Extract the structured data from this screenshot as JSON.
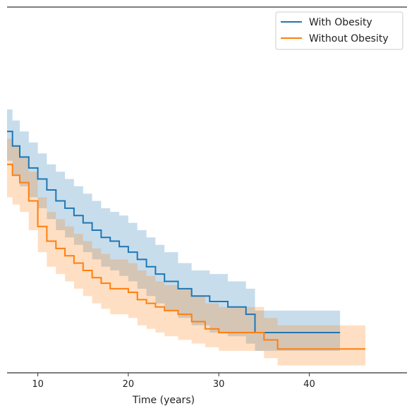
{
  "chart_data": {
    "type": "line",
    "title": "",
    "xlabel": "Time (years)",
    "ylabel": "",
    "xlim": [
      6.6,
      50.8
    ],
    "ylim": [
      0.0,
      1.0
    ],
    "xticks": [
      10,
      20,
      30,
      40
    ],
    "grid": false,
    "legend_position": "top-right",
    "series": [
      {
        "name": "With Obesity",
        "color": "#1f77b4",
        "ci_color": "#1f77b4",
        "steps": [
          [
            6.6,
            0.66
          ],
          [
            7.2,
            0.62
          ],
          [
            8.0,
            0.59
          ],
          [
            9.0,
            0.56
          ],
          [
            10.0,
            0.53
          ],
          [
            11.0,
            0.5
          ],
          [
            12.0,
            0.47
          ],
          [
            13.0,
            0.45
          ],
          [
            14.0,
            0.43
          ],
          [
            15.0,
            0.41
          ],
          [
            16.0,
            0.39
          ],
          [
            17.0,
            0.37
          ],
          [
            18.0,
            0.36
          ],
          [
            19.0,
            0.345
          ],
          [
            20.0,
            0.33
          ],
          [
            21.0,
            0.31
          ],
          [
            22.0,
            0.29
          ],
          [
            23.0,
            0.27
          ],
          [
            24.0,
            0.25
          ],
          [
            25.5,
            0.23
          ],
          [
            27.0,
            0.21
          ],
          [
            29.0,
            0.195
          ],
          [
            31.0,
            0.18
          ],
          [
            33.0,
            0.16
          ],
          [
            34.0,
            0.11
          ],
          [
            43.4,
            0.11
          ]
        ],
        "ci_lower": [
          [
            6.6,
            0.58
          ],
          [
            7.2,
            0.54
          ],
          [
            8.0,
            0.51
          ],
          [
            9.0,
            0.48
          ],
          [
            10.0,
            0.45
          ],
          [
            11.0,
            0.42
          ],
          [
            12.0,
            0.39
          ],
          [
            13.0,
            0.37
          ],
          [
            14.0,
            0.35
          ],
          [
            15.0,
            0.33
          ],
          [
            16.0,
            0.31
          ],
          [
            17.0,
            0.29
          ],
          [
            18.0,
            0.28
          ],
          [
            19.0,
            0.265
          ],
          [
            20.0,
            0.25
          ],
          [
            21.0,
            0.23
          ],
          [
            22.0,
            0.21
          ],
          [
            23.0,
            0.19
          ],
          [
            24.0,
            0.17
          ],
          [
            25.5,
            0.15
          ],
          [
            27.0,
            0.13
          ],
          [
            29.0,
            0.11
          ],
          [
            31.0,
            0.1
          ],
          [
            33.0,
            0.08
          ],
          [
            34.0,
            0.06
          ],
          [
            43.4,
            0.06
          ]
        ],
        "ci_upper": [
          [
            6.6,
            0.72
          ],
          [
            7.2,
            0.69
          ],
          [
            8.0,
            0.66
          ],
          [
            9.0,
            0.63
          ],
          [
            10.0,
            0.6
          ],
          [
            11.0,
            0.57
          ],
          [
            12.0,
            0.55
          ],
          [
            13.0,
            0.53
          ],
          [
            14.0,
            0.51
          ],
          [
            15.0,
            0.49
          ],
          [
            16.0,
            0.47
          ],
          [
            17.0,
            0.45
          ],
          [
            18.0,
            0.44
          ],
          [
            19.0,
            0.43
          ],
          [
            20.0,
            0.41
          ],
          [
            21.0,
            0.39
          ],
          [
            22.0,
            0.37
          ],
          [
            23.0,
            0.35
          ],
          [
            24.0,
            0.33
          ],
          [
            25.5,
            0.3
          ],
          [
            27.0,
            0.28
          ],
          [
            29.0,
            0.27
          ],
          [
            31.0,
            0.25
          ],
          [
            33.0,
            0.23
          ],
          [
            34.0,
            0.17
          ],
          [
            43.4,
            0.17
          ]
        ]
      },
      {
        "name": "Without Obesity",
        "color": "#ff7f0e",
        "ci_color": "#ff7f0e",
        "steps": [
          [
            6.6,
            0.57
          ],
          [
            7.2,
            0.54
          ],
          [
            8.0,
            0.52
          ],
          [
            9.0,
            0.47
          ],
          [
            10.0,
            0.4
          ],
          [
            11.0,
            0.36
          ],
          [
            12.0,
            0.34
          ],
          [
            13.0,
            0.32
          ],
          [
            14.0,
            0.3
          ],
          [
            15.0,
            0.28
          ],
          [
            16.0,
            0.26
          ],
          [
            17.0,
            0.245
          ],
          [
            18.0,
            0.23
          ],
          [
            20.0,
            0.22
          ],
          [
            21.0,
            0.2
          ],
          [
            22.0,
            0.19
          ],
          [
            23.0,
            0.18
          ],
          [
            24.0,
            0.17
          ],
          [
            25.5,
            0.16
          ],
          [
            27.0,
            0.14
          ],
          [
            28.5,
            0.12
          ],
          [
            30.0,
            0.11
          ],
          [
            33.0,
            0.11
          ],
          [
            35.0,
            0.09
          ],
          [
            36.5,
            0.065
          ],
          [
            46.2,
            0.065
          ]
        ],
        "ci_lower": [
          [
            6.6,
            0.48
          ],
          [
            7.2,
            0.46
          ],
          [
            8.0,
            0.44
          ],
          [
            9.0,
            0.39
          ],
          [
            10.0,
            0.33
          ],
          [
            11.0,
            0.29
          ],
          [
            12.0,
            0.27
          ],
          [
            13.0,
            0.25
          ],
          [
            14.0,
            0.23
          ],
          [
            15.0,
            0.21
          ],
          [
            16.0,
            0.19
          ],
          [
            17.0,
            0.175
          ],
          [
            18.0,
            0.16
          ],
          [
            20.0,
            0.15
          ],
          [
            21.0,
            0.13
          ],
          [
            22.0,
            0.12
          ],
          [
            23.0,
            0.11
          ],
          [
            24.0,
            0.1
          ],
          [
            25.5,
            0.09
          ],
          [
            27.0,
            0.08
          ],
          [
            28.5,
            0.07
          ],
          [
            30.0,
            0.06
          ],
          [
            33.0,
            0.06
          ],
          [
            35.0,
            0.04
          ],
          [
            36.5,
            0.02
          ],
          [
            46.2,
            0.02
          ]
        ],
        "ci_upper": [
          [
            6.6,
            0.64
          ],
          [
            7.2,
            0.62
          ],
          [
            8.0,
            0.59
          ],
          [
            9.0,
            0.55
          ],
          [
            10.0,
            0.48
          ],
          [
            11.0,
            0.44
          ],
          [
            12.0,
            0.42
          ],
          [
            13.0,
            0.4
          ],
          [
            14.0,
            0.38
          ],
          [
            15.0,
            0.36
          ],
          [
            16.0,
            0.34
          ],
          [
            17.0,
            0.325
          ],
          [
            18.0,
            0.31
          ],
          [
            20.0,
            0.3
          ],
          [
            21.0,
            0.28
          ],
          [
            22.0,
            0.265
          ],
          [
            23.0,
            0.25
          ],
          [
            24.0,
            0.24
          ],
          [
            25.5,
            0.23
          ],
          [
            27.0,
            0.21
          ],
          [
            28.5,
            0.19
          ],
          [
            30.0,
            0.18
          ],
          [
            33.0,
            0.18
          ],
          [
            35.0,
            0.15
          ],
          [
            36.5,
            0.13
          ],
          [
            46.2,
            0.13
          ]
        ]
      }
    ]
  }
}
